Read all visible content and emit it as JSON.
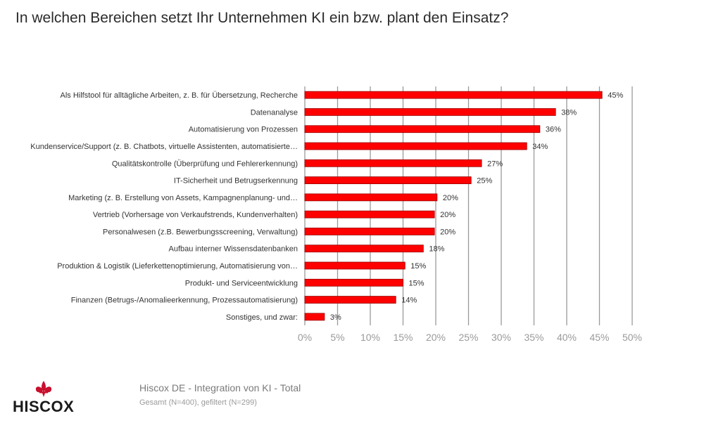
{
  "title": "In welchen Bereichen setzt Ihr Unternehmen KI ein bzw. plant den Einsatz?",
  "chart_data": {
    "type": "bar",
    "orientation": "horizontal",
    "categories": [
      "Als Hilfstool für alltägliche Arbeiten, z. B. für Übersetzung, Recherche",
      "Datenanalyse",
      "Automatisierung von Prozessen",
      "Kundenservice/Support (z. B. Chatbots, virtuelle Assistenten, automatisierte…",
      "Qualitätskontrolle (Überprüfung und Fehlererkennung)",
      "IT-Sicherheit und Betrugserkennung",
      "Marketing (z. B. Erstellung von Assets, Kampagnenplanung- und…",
      "Vertrieb (Vorhersage von Verkaufstrends, Kundenverhalten)",
      "Personalwesen (z.B. Bewerbungsscreening, Verwaltung)",
      "Aufbau interner Wissensdatenbanken",
      "Produktion & Logistik (Lieferkettenoptimierung, Automatisierung von…",
      "Produkt- und Serviceentwicklung",
      "Finanzen (Betrugs-/Anomalieerkennung, Prozessautomatisierung)",
      "Sonstiges, und zwar:"
    ],
    "values": [
      45.4,
      38.3,
      35.9,
      33.9,
      27.0,
      25.4,
      20.2,
      19.8,
      19.8,
      18.1,
      15.3,
      15.0,
      13.9,
      3.0
    ],
    "data_labels": [
      "45%",
      "38%",
      "36%",
      "34%",
      "27%",
      "25%",
      "20%",
      "20%",
      "20%",
      "18%",
      "15%",
      "15%",
      "14%",
      "3%"
    ],
    "xlim": [
      0,
      50
    ],
    "xticks": [
      "0%",
      "5%",
      "10%",
      "15%",
      "20%",
      "25%",
      "30%",
      "35%",
      "40%",
      "45%",
      "50%"
    ],
    "grid": "vertical",
    "bar_color": "#ff0000",
    "bar_outline": "#9a0000"
  },
  "footer": {
    "source_title": "Hiscox DE - Integration von KI - Total",
    "source_sub": "Gesamt (N=400), gefiltert (N=299)"
  },
  "logo": {
    "text": "HISCOX",
    "icon": "fleur-de-lis-icon",
    "color": "#c8102e"
  }
}
